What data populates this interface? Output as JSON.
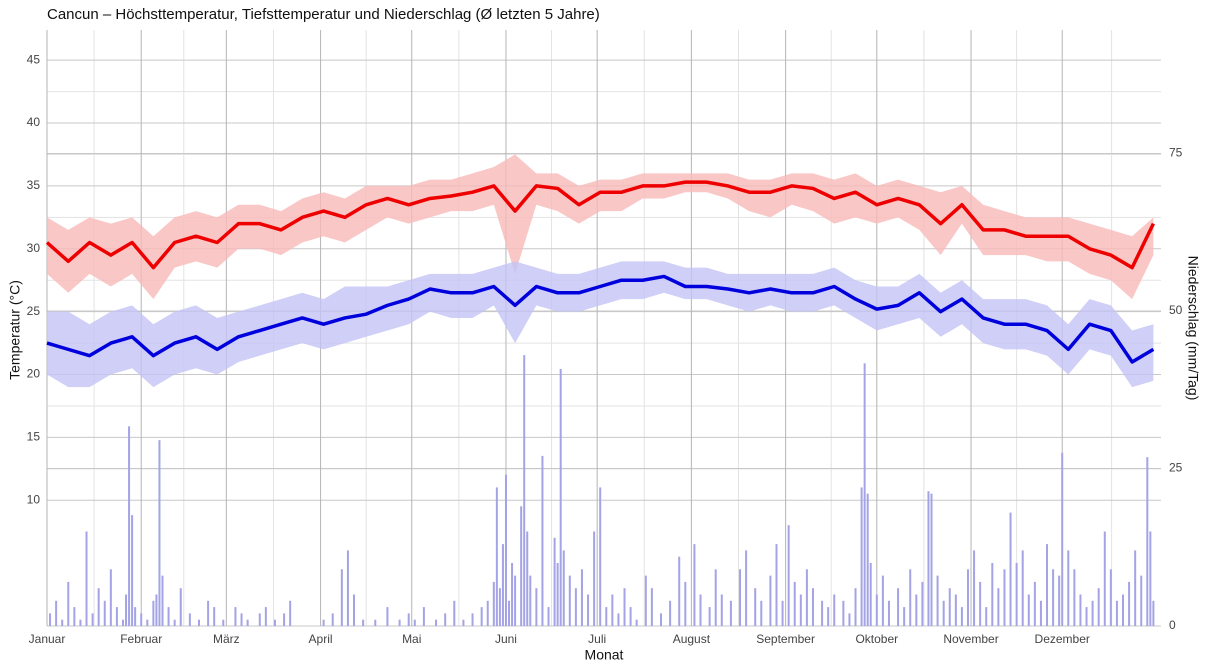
{
  "chart_data": {
    "type": "line",
    "title": "Cancun – Höchsttemperatur, Tiefsttemperatur und Niederschlag (Ø letzten 5 Jahre)",
    "x_label": "Monat",
    "y_label": "Temperatur (°C)",
    "y2_label": "Niederschlag (mm/Tag)",
    "xlim": [
      0,
      366.5
    ],
    "xticks": [
      {
        "value": 0,
        "label": "Januar"
      },
      {
        "value": 31,
        "label": "Februar"
      },
      {
        "value": 59,
        "label": "März"
      },
      {
        "value": 90,
        "label": "April"
      },
      {
        "value": 120,
        "label": "Mai"
      },
      {
        "value": 151,
        "label": "Juni"
      },
      {
        "value": 181,
        "label": "Juli"
      },
      {
        "value": 212,
        "label": "August"
      },
      {
        "value": 243,
        "label": "September"
      },
      {
        "value": 273,
        "label": "Oktober"
      },
      {
        "value": 304,
        "label": "November"
      },
      {
        "value": 334,
        "label": "Dezember"
      }
    ],
    "ylim": [
      0,
      47.4
    ],
    "yticks": [
      10,
      15,
      20,
      25,
      30,
      35,
      40,
      45
    ],
    "y2lim": [
      0,
      94.6
    ],
    "y2ticks": [
      0,
      25,
      50,
      75
    ],
    "grid": true,
    "x": [
      0,
      7,
      14,
      21,
      28,
      35,
      42,
      49,
      56,
      63,
      70,
      77,
      84,
      91,
      98,
      105,
      112,
      119,
      126,
      133,
      140,
      147,
      154,
      161,
      168,
      175,
      182,
      189,
      196,
      203,
      210,
      217,
      224,
      231,
      238,
      245,
      252,
      259,
      266,
      273,
      280,
      287,
      294,
      301,
      308,
      315,
      322,
      329,
      336,
      343,
      350,
      357,
      364
    ],
    "series": [
      {
        "color": "#ee0000",
        "band_color": "#f9b9b9",
        "values": [
          30.5,
          29,
          30.5,
          29.5,
          30.5,
          28.5,
          30.5,
          31,
          30.5,
          32,
          32,
          31.5,
          32.5,
          33,
          32.5,
          33.5,
          34,
          33.5,
          34,
          34.2,
          34.5,
          35,
          33,
          35,
          34.8,
          33.5,
          34.5,
          34.5,
          35,
          35,
          35.3,
          35.3,
          35,
          34.5,
          34.5,
          35,
          34.8,
          34,
          34.5,
          33.5,
          34,
          33.5,
          32,
          33.5,
          31.5,
          31.5,
          31,
          31,
          31,
          30,
          29.5,
          28.5,
          32
        ],
        "low": [
          28,
          26.5,
          28,
          27,
          28,
          26,
          28.5,
          29,
          28.5,
          30,
          30,
          29.5,
          30.5,
          31,
          30.5,
          31.5,
          32.5,
          32,
          32.5,
          33,
          33,
          33.5,
          28,
          33.5,
          33,
          32,
          33,
          33,
          34,
          34,
          34.5,
          34.5,
          34,
          33,
          32.5,
          33.5,
          33,
          32,
          32.5,
          32,
          32.5,
          31.5,
          29.5,
          32,
          29.5,
          29.5,
          29.5,
          29,
          29,
          28,
          27.5,
          26,
          29.5
        ],
        "high": [
          32.5,
          31.5,
          32.5,
          32,
          32.5,
          31,
          32.5,
          33,
          32.5,
          33.5,
          33.5,
          33,
          34,
          34.5,
          34,
          35,
          35,
          35,
          35.5,
          35.5,
          36,
          36.5,
          37.5,
          36,
          36,
          35,
          35.5,
          35.5,
          36,
          36,
          36,
          36,
          36,
          35.5,
          35.5,
          36,
          36,
          35.5,
          36,
          35,
          35.5,
          35,
          34.5,
          35,
          33.5,
          33,
          32.5,
          32.5,
          32.5,
          32,
          31.5,
          31,
          32.5
        ]
      },
      {
        "color": "#0000dd",
        "band_color": "#c3c3f5",
        "values": [
          22.5,
          22,
          21.5,
          22.5,
          23,
          21.5,
          22.5,
          23,
          22,
          23,
          23.5,
          24,
          24.5,
          24,
          24.5,
          24.8,
          25.5,
          26,
          26.8,
          26.5,
          26.5,
          27,
          25.5,
          27,
          26.5,
          26.5,
          27,
          27.5,
          27.5,
          27.8,
          27,
          27,
          26.8,
          26.5,
          26.8,
          26.5,
          26.5,
          27,
          26,
          25.2,
          25.5,
          26.5,
          25,
          26,
          24.5,
          24,
          24,
          23.5,
          22,
          24,
          23.5,
          21,
          22
        ],
        "low": [
          20,
          19,
          19,
          20,
          20.5,
          19,
          20,
          20.5,
          20,
          21,
          21.5,
          22,
          22.5,
          22,
          22.5,
          23,
          23.5,
          24,
          25,
          24.5,
          24.5,
          25.5,
          22.5,
          25.5,
          25,
          25,
          25.5,
          26,
          26,
          26.5,
          26,
          26,
          25.5,
          25,
          25.5,
          25,
          25,
          25.5,
          24.5,
          23.5,
          24,
          24.5,
          23,
          24,
          22.5,
          22,
          22,
          21.5,
          20,
          22,
          21.5,
          19,
          19.5
        ],
        "high": [
          25,
          25,
          24,
          25,
          25.5,
          24,
          25,
          25.5,
          24.5,
          25,
          25.5,
          26,
          26.5,
          26,
          27,
          27,
          27,
          27.5,
          28,
          28,
          28,
          28.5,
          29,
          28.5,
          28,
          28,
          28.5,
          29,
          29,
          29,
          28.5,
          28.5,
          28,
          28,
          28,
          28,
          28,
          28.5,
          27.5,
          27,
          27,
          28,
          26.5,
          27.5,
          26,
          26,
          26,
          25.5,
          24,
          26,
          25.5,
          23.5,
          24
        ]
      }
    ],
    "bars": {
      "axis": "y2",
      "color": "#a3a3e6",
      "x": [
        1,
        3,
        5,
        7,
        9,
        11,
        13,
        15,
        17,
        19,
        21,
        23,
        25,
        26,
        27,
        28,
        29,
        31,
        33,
        35,
        36,
        37,
        38,
        40,
        42,
        44,
        47,
        50,
        53,
        55,
        58,
        62,
        64,
        66,
        70,
        72,
        75,
        78,
        80,
        91,
        94,
        97,
        99,
        101,
        104,
        108,
        112,
        116,
        119,
        121,
        124,
        128,
        131,
        134,
        137,
        140,
        143,
        145,
        147,
        148,
        149,
        150,
        151,
        152,
        153,
        154,
        156,
        157,
        158,
        159,
        161,
        163,
        165,
        167,
        168,
        169,
        170,
        172,
        174,
        176,
        178,
        180,
        182,
        184,
        186,
        188,
        190,
        192,
        194,
        197,
        199,
        202,
        205,
        208,
        210,
        213,
        215,
        218,
        220,
        222,
        225,
        228,
        230,
        233,
        235,
        238,
        240,
        242,
        244,
        246,
        248,
        250,
        252,
        255,
        257,
        259,
        262,
        264,
        266,
        268,
        269,
        270,
        271,
        273,
        275,
        277,
        280,
        282,
        284,
        286,
        288,
        290,
        291,
        293,
        295,
        297,
        299,
        301,
        303,
        305,
        307,
        309,
        311,
        313,
        315,
        317,
        319,
        321,
        323,
        325,
        327,
        329,
        331,
        333,
        334,
        336,
        338,
        340,
        342,
        344,
        346,
        348,
        350,
        352,
        354,
        356,
        358,
        360,
        362,
        363,
        364
      ],
      "values": [
        2,
        4,
        1,
        7,
        3,
        1,
        15,
        2,
        6,
        4,
        9,
        3,
        1,
        5,
        31.7,
        17.6,
        3,
        2,
        1,
        4,
        5,
        29.5,
        8,
        3,
        1,
        6,
        2,
        1,
        4,
        3,
        1,
        3,
        2,
        1,
        2,
        3,
        1,
        2,
        4,
        1,
        2,
        9,
        12,
        5,
        1,
        1,
        3,
        1,
        2,
        1,
        3,
        1,
        2,
        4,
        1,
        2,
        3,
        4,
        7,
        22,
        6,
        13,
        24,
        4,
        10,
        8,
        19,
        43,
        15,
        8,
        6,
        27,
        3,
        14,
        10,
        40.8,
        12,
        8,
        6,
        9,
        5,
        15,
        22,
        3,
        5,
        2,
        6,
        3,
        1,
        8,
        6,
        2,
        4,
        11,
        7,
        13,
        5,
        3,
        9,
        5,
        4,
        9,
        12,
        6,
        4,
        8,
        13,
        4,
        16,
        7,
        5,
        9,
        6,
        4,
        3,
        5,
        4,
        2,
        6,
        22,
        41.7,
        21,
        10,
        5,
        8,
        4,
        6,
        3,
        9,
        5,
        7,
        21.4,
        21,
        8,
        4,
        6,
        5,
        3,
        9,
        12,
        7,
        3,
        10,
        6,
        9,
        18,
        10,
        12,
        5,
        7,
        4,
        13,
        9,
        8,
        27.5,
        12,
        9,
        5,
        3,
        4,
        6,
        15,
        9,
        4,
        5,
        7,
        12,
        8,
        26.8,
        15,
        4
      ]
    }
  }
}
